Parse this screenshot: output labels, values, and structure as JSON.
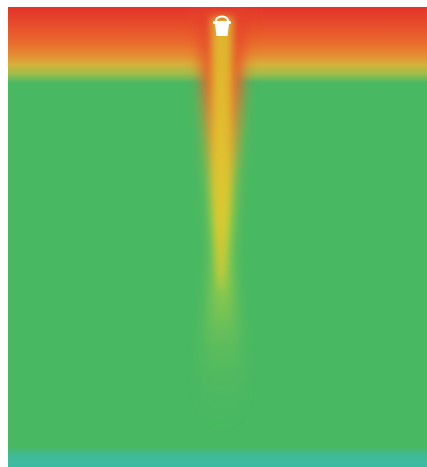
{
  "chart_data": {
    "type": "heatmap",
    "title": "",
    "xlabel": "",
    "ylabel": "",
    "colors": {
      "top_band": "#e3382a",
      "upper_band": "#e9682c",
      "transition": "#d9c23a",
      "plume_core": "#dcdc2e",
      "background": "#49b862",
      "bottom_band": "#3dbba2"
    },
    "source_icon": "bucket-icon"
  }
}
